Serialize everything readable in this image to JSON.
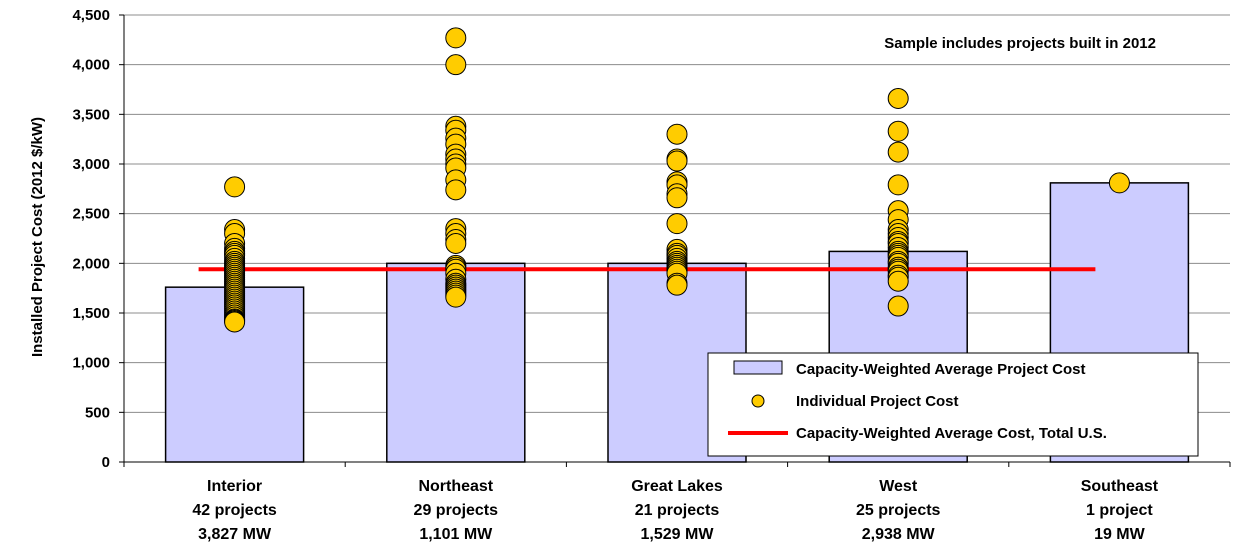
{
  "chart_data": {
    "type": "bar",
    "annotation": "Sample includes projects built in 2012",
    "ylabel": "Installed Project Cost (2012 $/kW)",
    "xlabel": "",
    "ylim": [
      0,
      4500
    ],
    "yticks": [
      0,
      500,
      1000,
      1500,
      2000,
      2500,
      3000,
      3500,
      4000,
      4500
    ],
    "ytick_labels": [
      "0",
      "500",
      "1,000",
      "1,500",
      "2,000",
      "2,500",
      "3,000",
      "3,500",
      "4,000",
      "4,500"
    ],
    "grid": true,
    "legend_position": "bottom-right",
    "categories": [
      {
        "name": "Interior",
        "projects": "42 projects",
        "capacity": "3,827 MW"
      },
      {
        "name": "Northeast",
        "projects": "29 projects",
        "capacity": "1,101 MW"
      },
      {
        "name": "Great Lakes",
        "projects": "21 projects",
        "capacity": "1,529 MW"
      },
      {
        "name": "West",
        "projects": "25 projects",
        "capacity": "2,938 MW"
      },
      {
        "name": "Southeast",
        "projects": "1 project",
        "capacity": "19 MW"
      }
    ],
    "series": [
      {
        "name": "Capacity-Weighted Average Project Cost",
        "kind": "bar",
        "color": "#ccccff",
        "values": [
          1760,
          2000,
          2000,
          2120,
          2810
        ]
      },
      {
        "name": "Individual Project Cost",
        "kind": "scatter",
        "color": "#ffcc00",
        "points": [
          [
            2770,
            2340,
            2300,
            2200,
            2150,
            2120,
            2100,
            2080,
            2050,
            2020,
            2000,
            1980,
            1960,
            1940,
            1920,
            1900,
            1880,
            1860,
            1840,
            1820,
            1800,
            1780,
            1760,
            1740,
            1720,
            1700,
            1680,
            1660,
            1640,
            1620,
            1600,
            1580,
            1560,
            1540,
            1520,
            1500,
            1480,
            1460,
            1440,
            1430,
            1420,
            1410
          ],
          [
            4270,
            4000,
            3380,
            3340,
            3260,
            3200,
            3100,
            3050,
            3000,
            2960,
            2840,
            2740,
            2350,
            2300,
            2240,
            2200,
            1980,
            1960,
            1940,
            1900,
            1840,
            1800,
            1780,
            1760,
            1740,
            1720,
            1700,
            1680,
            1660
          ],
          [
            3300,
            3050,
            3030,
            2820,
            2790,
            2700,
            2660,
            2400,
            2140,
            2100,
            2080,
            2050,
            2020,
            2000,
            1980,
            1960,
            1940,
            1920,
            1900,
            1800,
            1780
          ],
          [
            3660,
            3330,
            3120,
            2790,
            2530,
            2440,
            2340,
            2300,
            2260,
            2220,
            2200,
            2160,
            2120,
            2100,
            2080,
            2060,
            2020,
            2000,
            1960,
            1940,
            1920,
            1880,
            1860,
            1820,
            1570
          ],
          [
            2810
          ]
        ]
      },
      {
        "name": "Capacity-Weighted Average Cost, Total U.S.",
        "kind": "line",
        "color": "#ff0000",
        "value": 1940
      }
    ]
  }
}
